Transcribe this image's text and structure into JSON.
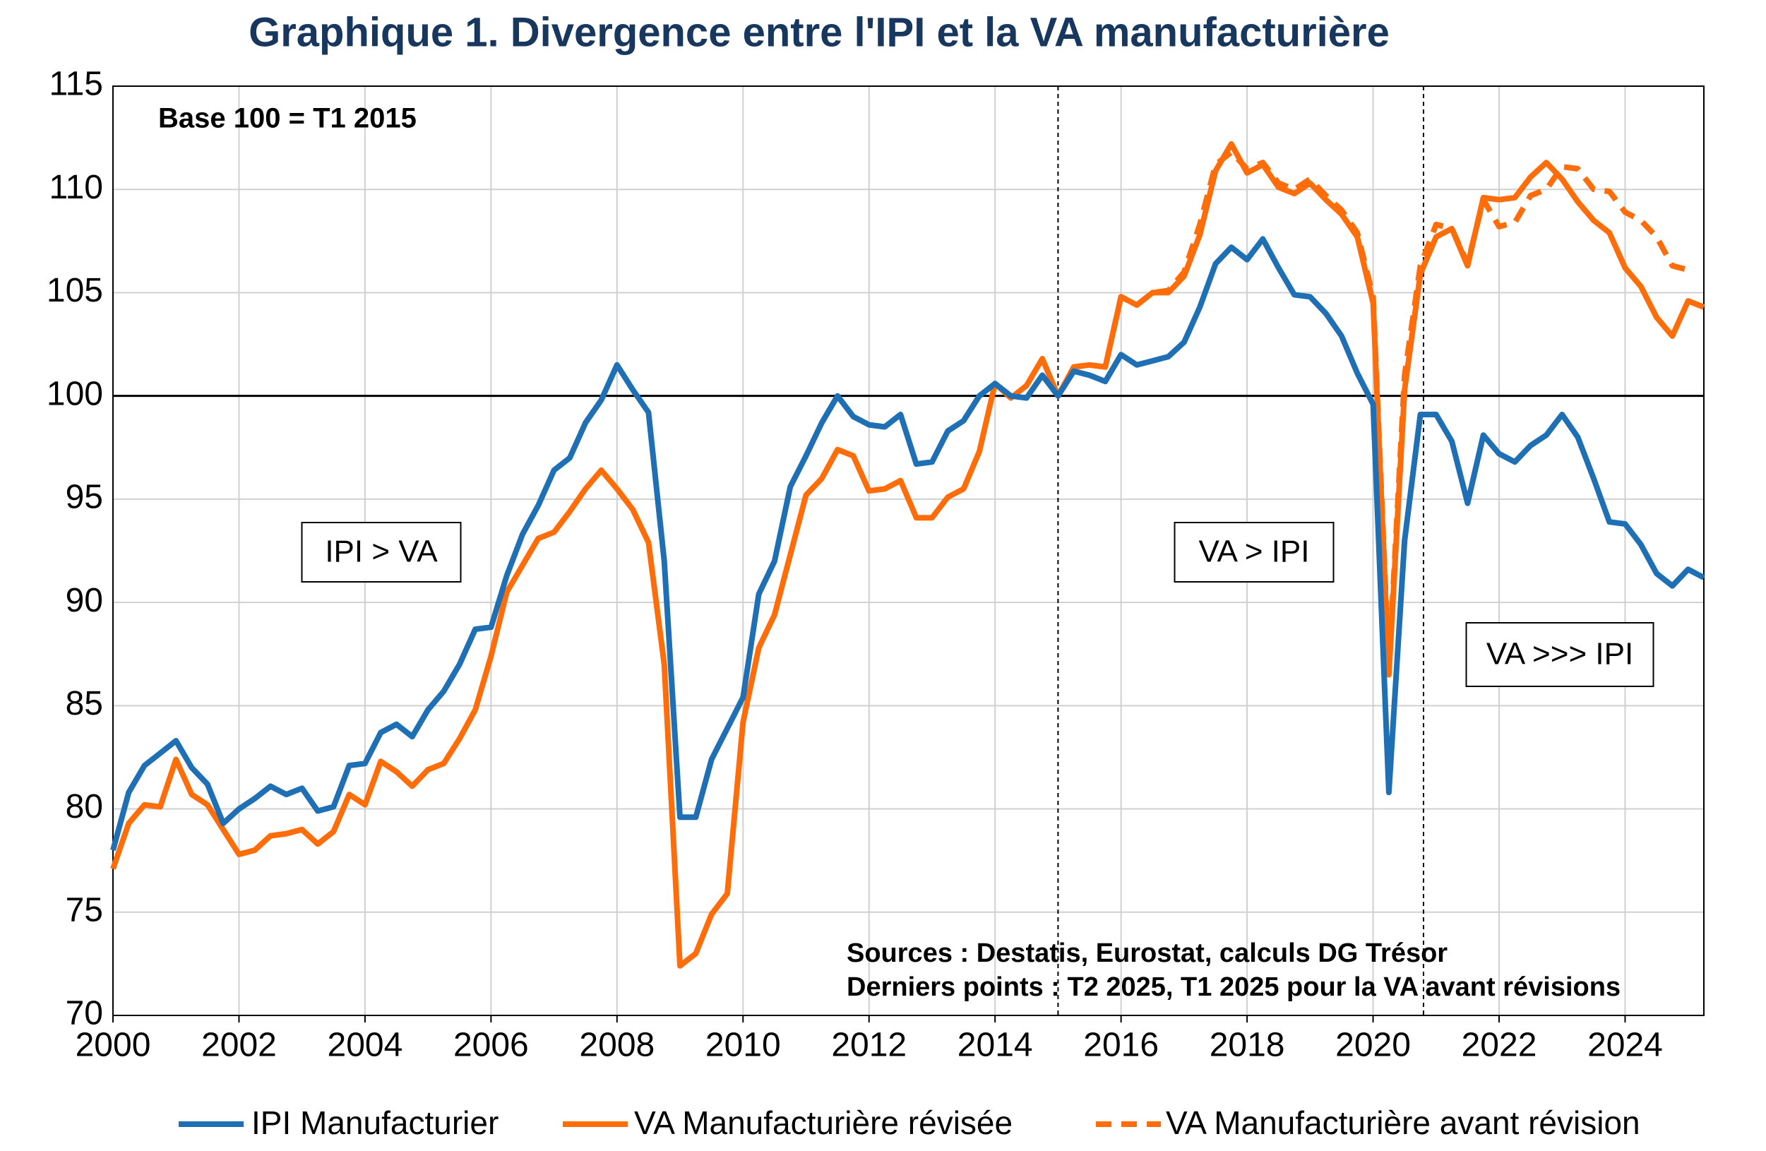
{
  "chart_data": {
    "type": "line",
    "title": "Graphique 1. Divergence entre l'IPI et la VA manufacturière",
    "annotations": [
      "Base 100 = T1 2015",
      "IPI > VA",
      "VA > IPI",
      "VA >>> IPI",
      "Sources : Destatis, Eurostat, calculs DG Trésor",
      "Derniers points : T2 2025, T1 2025 pour la VA avant révisions"
    ],
    "x": [
      2000,
      2000.25,
      2000.5,
      2000.75,
      2001,
      2001.25,
      2001.5,
      2001.75,
      2002,
      2002.25,
      2002.5,
      2002.75,
      2003,
      2003.25,
      2003.5,
      2003.75,
      2004,
      2004.25,
      2004.5,
      2004.75,
      2005,
      2005.25,
      2005.5,
      2005.75,
      2006,
      2006.25,
      2006.5,
      2006.75,
      2007,
      2007.25,
      2007.5,
      2007.75,
      2008,
      2008.25,
      2008.5,
      2008.75,
      2009,
      2009.25,
      2009.5,
      2009.75,
      2010,
      2010.25,
      2010.5,
      2010.75,
      2011,
      2011.25,
      2011.5,
      2011.75,
      2012,
      2012.25,
      2012.5,
      2012.75,
      2013,
      2013.25,
      2013.5,
      2013.75,
      2014,
      2014.25,
      2014.5,
      2014.75,
      2015,
      2015.25,
      2015.5,
      2015.75,
      2016,
      2016.25,
      2016.5,
      2016.75,
      2017,
      2017.25,
      2017.5,
      2017.75,
      2018,
      2018.25,
      2018.5,
      2018.75,
      2019,
      2019.25,
      2019.5,
      2019.75,
      2020,
      2020.25,
      2020.5,
      2020.75,
      2021,
      2021.25,
      2021.5,
      2021.75,
      2022,
      2022.25,
      2022.5,
      2022.75,
      2023,
      2023.25,
      2023.5,
      2023.75,
      2024,
      2024.25,
      2024.5,
      2024.75,
      2025,
      2025.25
    ],
    "series": [
      {
        "name": "IPI Manufacturier",
        "color": "#1f6fb5",
        "dashed": false,
        "values": [
          78.0,
          80.8,
          82.1,
          82.7,
          83.3,
          82.0,
          81.2,
          79.3,
          80.0,
          80.5,
          81.1,
          80.7,
          81.0,
          79.9,
          80.1,
          82.1,
          82.2,
          83.7,
          84.1,
          83.5,
          84.8,
          85.7,
          87.0,
          88.7,
          88.8,
          91.3,
          93.3,
          94.7,
          96.4,
          97.0,
          98.7,
          99.8,
          101.5,
          100.3,
          99.2,
          92.0,
          79.6,
          79.6,
          82.4,
          83.9,
          85.4,
          90.4,
          92.0,
          95.6,
          97.1,
          98.7,
          100.0,
          99.0,
          98.6,
          98.5,
          99.1,
          96.7,
          96.8,
          98.3,
          98.8,
          100.0,
          100.6,
          100.0,
          99.9,
          101.0,
          100.0,
          101.2,
          101.0,
          100.7,
          102.0,
          101.5,
          101.7,
          101.9,
          102.6,
          104.3,
          106.4,
          107.2,
          106.6,
          107.6,
          106.2,
          104.9,
          104.8,
          104.0,
          102.9,
          101.1,
          99.6,
          80.8,
          93.0,
          99.1,
          99.1,
          97.8,
          94.8,
          98.1,
          97.2,
          96.8,
          97.6,
          98.1,
          99.1,
          98.0,
          96.0,
          93.9,
          93.8,
          92.8,
          91.4,
          90.8,
          91.6,
          91.2
        ]
      },
      {
        "name": "VA Manufacturière révisée",
        "color": "#ff6d0b",
        "dashed": false,
        "values": [
          77.1,
          79.3,
          80.2,
          80.1,
          82.4,
          80.7,
          80.2,
          79.0,
          77.8,
          78.0,
          78.7,
          78.8,
          79.0,
          78.3,
          78.9,
          80.7,
          80.2,
          82.3,
          81.8,
          81.1,
          81.9,
          82.2,
          83.4,
          84.8,
          87.4,
          90.5,
          91.8,
          93.1,
          93.4,
          94.4,
          95.5,
          96.4,
          95.5,
          94.5,
          92.9,
          87.0,
          72.4,
          73.0,
          74.9,
          75.9,
          84.2,
          87.8,
          89.4,
          92.3,
          95.2,
          96.0,
          97.4,
          97.1,
          95.4,
          95.5,
          95.9,
          94.1,
          94.1,
          95.1,
          95.5,
          97.3,
          100.6,
          99.9,
          100.5,
          101.8,
          100.0,
          101.4,
          101.5,
          101.4,
          104.8,
          104.4,
          105.0,
          105.0,
          105.8,
          107.8,
          110.9,
          112.2,
          110.8,
          111.2,
          110.1,
          109.8,
          110.3,
          109.5,
          108.8,
          107.7,
          104.5,
          86.5,
          100.3,
          105.9,
          107.7,
          108.1,
          106.3,
          109.6,
          109.5,
          109.6,
          110.6,
          111.3,
          110.5,
          109.4,
          108.5,
          107.9,
          106.2,
          105.3,
          103.8,
          102.9,
          104.6,
          104.3
        ]
      },
      {
        "name": "VA Manufacturière avant révision",
        "color": "#ff6d0b",
        "dashed": true,
        "values": [
          null,
          null,
          null,
          null,
          null,
          null,
          null,
          null,
          null,
          null,
          null,
          null,
          null,
          null,
          null,
          null,
          null,
          null,
          null,
          null,
          null,
          null,
          null,
          null,
          null,
          null,
          null,
          null,
          null,
          null,
          null,
          null,
          null,
          null,
          null,
          null,
          null,
          null,
          null,
          null,
          null,
          null,
          null,
          null,
          null,
          null,
          null,
          null,
          null,
          null,
          null,
          null,
          null,
          null,
          null,
          null,
          null,
          null,
          null,
          null,
          100.0,
          101.4,
          101.5,
          101.4,
          104.8,
          104.4,
          105.0,
          105.1,
          106.0,
          108.3,
          111.2,
          111.8,
          111.0,
          111.3,
          110.3,
          110.0,
          110.5,
          109.7,
          109.0,
          107.9,
          104.8,
          86.8,
          101.0,
          106.3,
          108.3,
          108.1,
          106.4,
          109.5,
          108.2,
          108.4,
          109.7,
          110.0,
          111.1,
          111.0,
          110.0,
          109.9,
          108.9,
          108.5,
          107.7,
          106.3,
          106.1,
          null
        ]
      }
    ],
    "xlim": [
      2000,
      2025.25
    ],
    "xticks": [
      2000,
      2002,
      2004,
      2006,
      2008,
      2010,
      2012,
      2014,
      2016,
      2018,
      2020,
      2022,
      2024
    ],
    "ylim": [
      70,
      115
    ],
    "yticks": [
      70,
      75,
      80,
      85,
      90,
      95,
      100,
      105,
      110,
      115
    ],
    "grid": true,
    "reference_line_y": 100,
    "reference_lines_x": [
      2015,
      2020.8
    ],
    "legend": "bottom"
  }
}
